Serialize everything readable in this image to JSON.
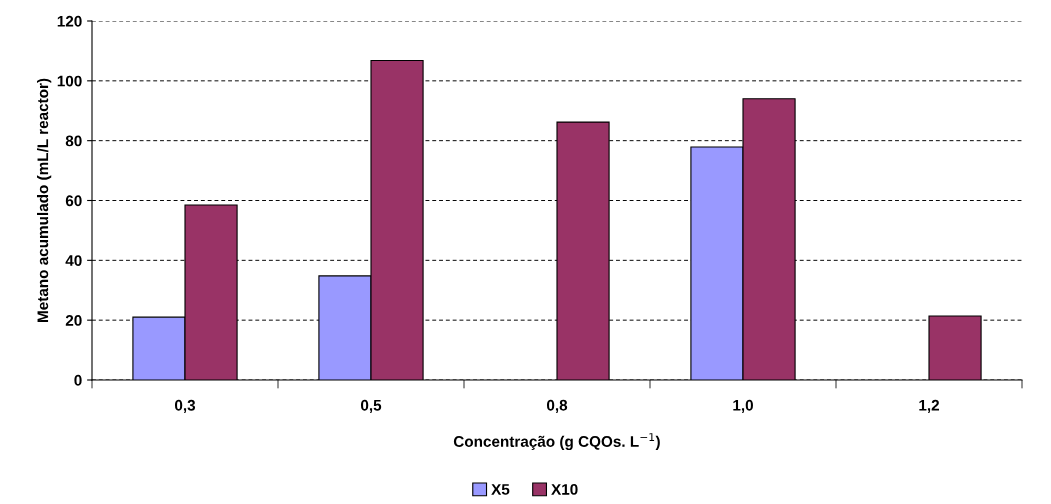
{
  "chart_data": {
    "type": "bar",
    "xlabel": "Concentração (g CQOs. L$^{−1}$)",
    "ylabel": "Metano acumulado (mL/L reactor)",
    "categories": [
      "0,3",
      "0,5",
      "0,8",
      "1,0",
      "1,2"
    ],
    "series": [
      {
        "name": "X5",
        "color": "#9999ff",
        "values": [
          21,
          34.8,
          null,
          77.9,
          null
        ]
      },
      {
        "name": "X10",
        "color": "#993366",
        "values": [
          58.5,
          106.8,
          86.2,
          94,
          21.4
        ]
      }
    ],
    "ylim": [
      0,
      120
    ],
    "yticks": [
      0,
      20,
      40,
      60,
      80,
      100,
      120
    ],
    "grid": "y",
    "legend": "bottom"
  }
}
